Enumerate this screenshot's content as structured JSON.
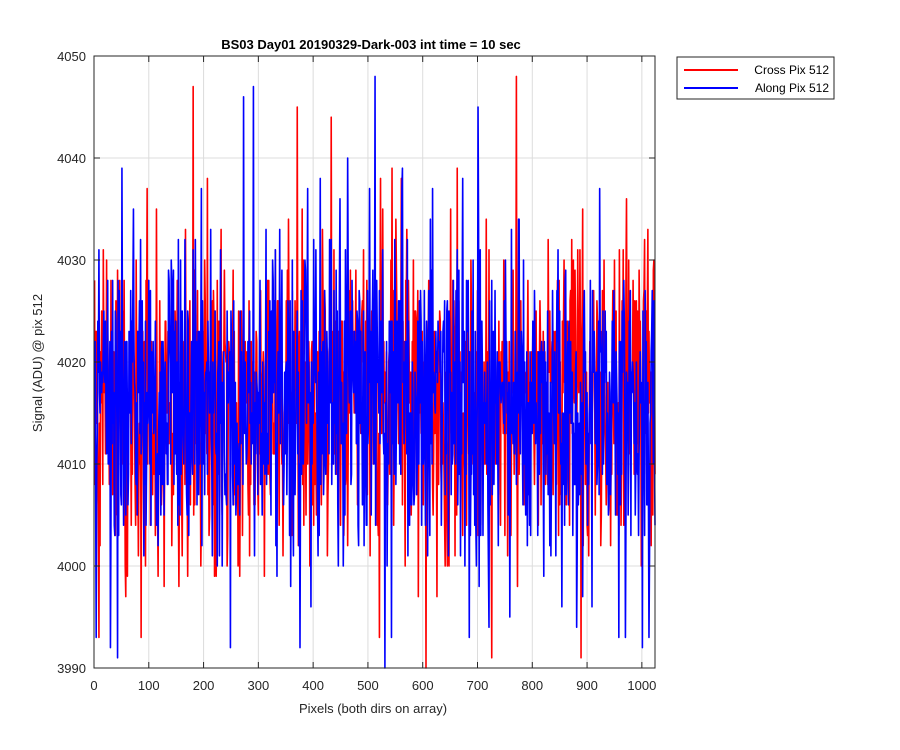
{
  "chart_data": {
    "type": "line",
    "title": "BS03 Day01 20190329-Dark-003 int time = 10 sec",
    "xlabel": "Pixels (both dirs on array)",
    "ylabel": "Signal (ADU) @ pix 512",
    "xlim": [
      0,
      1024
    ],
    "ylim": [
      3990,
      4050
    ],
    "xticks": [
      0,
      100,
      200,
      300,
      400,
      500,
      600,
      700,
      800,
      900,
      1000
    ],
    "yticks": [
      3990,
      4000,
      4010,
      4020,
      4030,
      4040,
      4050
    ],
    "grid": true,
    "legend_position": "outside-top-right",
    "noise_model": {
      "mean": 4016,
      "std_dev": 8,
      "n_points": 1024,
      "min": 3990,
      "max": 4048
    },
    "series": [
      {
        "name": "Cross Pix 512",
        "color": "#ff0000",
        "notable_points": [
          {
            "x": 8,
            "y": 3993
          },
          {
            "x": 85,
            "y": 3993
          },
          {
            "x": 180,
            "y": 4047
          },
          {
            "x": 370,
            "y": 4045
          },
          {
            "x": 432,
            "y": 4044
          },
          {
            "x": 520,
            "y": 3993
          },
          {
            "x": 725,
            "y": 3991
          },
          {
            "x": 770,
            "y": 4048
          },
          {
            "x": 888,
            "y": 4041
          },
          {
            "x": 888,
            "y": 3991
          },
          {
            "x": 1010,
            "y": 4033
          }
        ]
      },
      {
        "name": "Along Pix 512",
        "color": "#0000ff",
        "notable_points": [
          {
            "x": 3,
            "y": 3993
          },
          {
            "x": 42,
            "y": 3991
          },
          {
            "x": 50,
            "y": 4039
          },
          {
            "x": 272,
            "y": 4046
          },
          {
            "x": 290,
            "y": 4047
          },
          {
            "x": 375,
            "y": 3992
          },
          {
            "x": 512,
            "y": 4048
          },
          {
            "x": 530,
            "y": 3990
          },
          {
            "x": 700,
            "y": 4045
          },
          {
            "x": 1000,
            "y": 3992
          }
        ]
      }
    ]
  }
}
